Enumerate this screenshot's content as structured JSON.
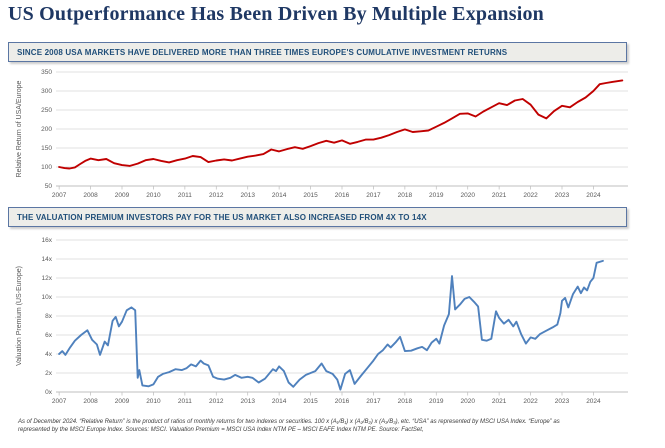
{
  "slide": {
    "title": "US Outperformance Has Been Driven By Multiple Expansion",
    "footnote_line1": "As of December 2024.  “Relative Return” is the product of ratios of monthly returns for two indexes or securities.  100 x (A₁/B₁) x (A₂/B₂) x (A₃/B₃), etc.   “USA” as represented by MSCI USA Index.  “Europe” as",
    "footnote_line2": "represented by the MSCI Europe Index. Sources: MSCI. Valuation Premium = MSCI USA Index NTM PE – MSCI EAFE Index NTM PE. Source: FactSet,"
  },
  "colors": {
    "title_text": "#1F3864",
    "banner_text": "#1F4E79",
    "banner_bg": "#EDEDE9",
    "banner_border": "#5B76A3",
    "gridline": "#D9D9D9",
    "axis": "#BFBFBF",
    "tick_label": "#595959"
  },
  "chart_data": [
    {
      "type": "line",
      "title": "SINCE 2008 USA MARKETS HAVE DELIVERED MORE THAN THREE TIMES EUROPE'S CUMULATIVE INVESTMENT RETURNS",
      "xlabel": "",
      "ylabel": "Relative Return of USA/Europe",
      "ylim": [
        50,
        350
      ],
      "grid": true,
      "legend": "none",
      "line_color": "#C00000",
      "y_ticks": [
        {
          "value": 50,
          "label": "50"
        },
        {
          "value": 100,
          "label": "100"
        },
        {
          "value": 150,
          "label": "150"
        },
        {
          "value": 200,
          "label": "200"
        },
        {
          "value": 250,
          "label": "250"
        },
        {
          "value": 300,
          "label": "300"
        },
        {
          "value": 350,
          "label": "350"
        }
      ],
      "x_ticks": [
        2007,
        2008,
        2009,
        2010,
        2011,
        2012,
        2013,
        2014,
        2015,
        2016,
        2017,
        2018,
        2019,
        2020,
        2021,
        2022,
        2023,
        2024
      ],
      "points": [
        [
          2007.0,
          100
        ],
        [
          2007.17,
          97
        ],
        [
          2007.33,
          96
        ],
        [
          2007.5,
          99
        ],
        [
          2007.67,
          108
        ],
        [
          2007.83,
          116
        ],
        [
          2008.0,
          122
        ],
        [
          2008.25,
          118
        ],
        [
          2008.5,
          121
        ],
        [
          2008.75,
          110
        ],
        [
          2009.0,
          105
        ],
        [
          2009.25,
          103
        ],
        [
          2009.5,
          109
        ],
        [
          2009.75,
          118
        ],
        [
          2010.0,
          121
        ],
        [
          2010.25,
          116
        ],
        [
          2010.5,
          112
        ],
        [
          2010.75,
          118
        ],
        [
          2011.0,
          122
        ],
        [
          2011.25,
          129
        ],
        [
          2011.5,
          126
        ],
        [
          2011.75,
          113
        ],
        [
          2012.0,
          117
        ],
        [
          2012.25,
          120
        ],
        [
          2012.5,
          117
        ],
        [
          2012.75,
          122
        ],
        [
          2013.0,
          127
        ],
        [
          2013.25,
          130
        ],
        [
          2013.5,
          134
        ],
        [
          2013.75,
          146
        ],
        [
          2014.0,
          141
        ],
        [
          2014.25,
          147
        ],
        [
          2014.5,
          152
        ],
        [
          2014.75,
          148
        ],
        [
          2015.0,
          155
        ],
        [
          2015.25,
          163
        ],
        [
          2015.5,
          169
        ],
        [
          2015.75,
          164
        ],
        [
          2016.0,
          170
        ],
        [
          2016.25,
          161
        ],
        [
          2016.5,
          166
        ],
        [
          2016.75,
          172
        ],
        [
          2017.0,
          172
        ],
        [
          2017.25,
          177
        ],
        [
          2017.5,
          184
        ],
        [
          2017.75,
          192
        ],
        [
          2018.0,
          199
        ],
        [
          2018.25,
          192
        ],
        [
          2018.5,
          194
        ],
        [
          2018.75,
          196
        ],
        [
          2019.0,
          206
        ],
        [
          2019.25,
          216
        ],
        [
          2019.5,
          228
        ],
        [
          2019.75,
          240
        ],
        [
          2020.0,
          241
        ],
        [
          2020.25,
          233
        ],
        [
          2020.5,
          246
        ],
        [
          2020.75,
          257
        ],
        [
          2021.0,
          268
        ],
        [
          2021.25,
          263
        ],
        [
          2021.5,
          275
        ],
        [
          2021.75,
          279
        ],
        [
          2022.0,
          264
        ],
        [
          2022.25,
          238
        ],
        [
          2022.5,
          228
        ],
        [
          2022.75,
          247
        ],
        [
          2023.0,
          261
        ],
        [
          2023.25,
          257
        ],
        [
          2023.5,
          271
        ],
        [
          2023.75,
          283
        ],
        [
          2024.0,
          300
        ],
        [
          2024.2,
          318
        ],
        [
          2024.4,
          321
        ],
        [
          2024.6,
          324
        ],
        [
          2024.92,
          328
        ]
      ]
    },
    {
      "type": "line",
      "title": "THE VALUATION PREMIUM INVESTORS PAY FOR THE US MARKET ALSO INCREASED FROM 4X TO 14X",
      "xlabel": "",
      "ylabel": "Valuation Premium (US-Europe)",
      "ylim": [
        0,
        16
      ],
      "grid": true,
      "legend": "none",
      "line_color": "#4F81BD",
      "y_ticks": [
        {
          "value": 0,
          "label": "0x"
        },
        {
          "value": 2,
          "label": "2x"
        },
        {
          "value": 4,
          "label": "4x"
        },
        {
          "value": 6,
          "label": "6x"
        },
        {
          "value": 8,
          "label": "8x"
        },
        {
          "value": 10,
          "label": "10x"
        },
        {
          "value": 12,
          "label": "12x"
        },
        {
          "value": 14,
          "label": "14x"
        },
        {
          "value": 16,
          "label": "16x"
        }
      ],
      "x_ticks": [
        2007,
        2008,
        2009,
        2010,
        2011,
        2012,
        2013,
        2014,
        2015,
        2016,
        2017,
        2018,
        2019,
        2020,
        2021,
        2022,
        2023,
        2024
      ],
      "points": [
        [
          2007.0,
          4.0
        ],
        [
          2007.1,
          4.3
        ],
        [
          2007.2,
          3.9
        ],
        [
          2007.35,
          4.7
        ],
        [
          2007.5,
          5.4
        ],
        [
          2007.7,
          6.0
        ],
        [
          2007.9,
          6.5
        ],
        [
          2008.05,
          5.5
        ],
        [
          2008.2,
          5.0
        ],
        [
          2008.3,
          3.9
        ],
        [
          2008.45,
          5.3
        ],
        [
          2008.55,
          4.9
        ],
        [
          2008.7,
          7.5
        ],
        [
          2008.8,
          7.9
        ],
        [
          2008.9,
          6.9
        ],
        [
          2009.0,
          7.4
        ],
        [
          2009.15,
          8.6
        ],
        [
          2009.3,
          8.9
        ],
        [
          2009.42,
          8.6
        ],
        [
          2009.5,
          1.5
        ],
        [
          2009.55,
          2.3
        ],
        [
          2009.65,
          0.7
        ],
        [
          2009.85,
          0.6
        ],
        [
          2010.0,
          0.8
        ],
        [
          2010.15,
          1.6
        ],
        [
          2010.3,
          1.9
        ],
        [
          2010.5,
          2.1
        ],
        [
          2010.7,
          2.4
        ],
        [
          2010.9,
          2.3
        ],
        [
          2011.05,
          2.5
        ],
        [
          2011.2,
          2.9
        ],
        [
          2011.35,
          2.7
        ],
        [
          2011.5,
          3.3
        ],
        [
          2011.6,
          3.0
        ],
        [
          2011.75,
          2.8
        ],
        [
          2011.9,
          1.6
        ],
        [
          2012.05,
          1.4
        ],
        [
          2012.25,
          1.3
        ],
        [
          2012.45,
          1.5
        ],
        [
          2012.6,
          1.8
        ],
        [
          2012.8,
          1.5
        ],
        [
          2013.0,
          1.6
        ],
        [
          2013.15,
          1.5
        ],
        [
          2013.35,
          1.0
        ],
        [
          2013.55,
          1.4
        ],
        [
          2013.8,
          2.4
        ],
        [
          2013.9,
          2.2
        ],
        [
          2014.0,
          2.7
        ],
        [
          2014.15,
          2.2
        ],
        [
          2014.3,
          1.0
        ],
        [
          2014.45,
          0.55
        ],
        [
          2014.65,
          1.3
        ],
        [
          2014.85,
          1.8
        ],
        [
          2015.0,
          2.0
        ],
        [
          2015.15,
          2.2
        ],
        [
          2015.35,
          3.0
        ],
        [
          2015.5,
          2.2
        ],
        [
          2015.7,
          1.9
        ],
        [
          2015.85,
          1.3
        ],
        [
          2015.95,
          0.25
        ],
        [
          2016.1,
          1.9
        ],
        [
          2016.25,
          2.3
        ],
        [
          2016.4,
          0.85
        ],
        [
          2016.6,
          1.7
        ],
        [
          2016.8,
          2.5
        ],
        [
          2017.0,
          3.3
        ],
        [
          2017.15,
          4.0
        ],
        [
          2017.3,
          4.4
        ],
        [
          2017.45,
          5.0
        ],
        [
          2017.55,
          4.7
        ],
        [
          2017.7,
          5.2
        ],
        [
          2017.85,
          5.8
        ],
        [
          2018.0,
          4.3
        ],
        [
          2018.2,
          4.35
        ],
        [
          2018.4,
          4.6
        ],
        [
          2018.55,
          4.75
        ],
        [
          2018.7,
          4.4
        ],
        [
          2018.85,
          5.2
        ],
        [
          2019.0,
          5.6
        ],
        [
          2019.1,
          5.1
        ],
        [
          2019.25,
          7.0
        ],
        [
          2019.4,
          8.2
        ],
        [
          2019.5,
          12.2
        ],
        [
          2019.6,
          8.7
        ],
        [
          2019.75,
          9.2
        ],
        [
          2019.9,
          9.8
        ],
        [
          2020.05,
          10.0
        ],
        [
          2020.2,
          9.5
        ],
        [
          2020.33,
          9.0
        ],
        [
          2020.45,
          5.5
        ],
        [
          2020.6,
          5.4
        ],
        [
          2020.75,
          5.6
        ],
        [
          2020.9,
          8.5
        ],
        [
          2021.0,
          7.8
        ],
        [
          2021.15,
          7.2
        ],
        [
          2021.3,
          7.6
        ],
        [
          2021.45,
          6.9
        ],
        [
          2021.55,
          7.4
        ],
        [
          2021.7,
          6.1
        ],
        [
          2021.85,
          5.1
        ],
        [
          2022.0,
          5.75
        ],
        [
          2022.15,
          5.6
        ],
        [
          2022.3,
          6.1
        ],
        [
          2022.5,
          6.45
        ],
        [
          2022.7,
          6.8
        ],
        [
          2022.85,
          7.1
        ],
        [
          2022.95,
          8.3
        ],
        [
          2023.0,
          9.6
        ],
        [
          2023.1,
          9.9
        ],
        [
          2023.2,
          8.9
        ],
        [
          2023.35,
          10.3
        ],
        [
          2023.5,
          11.1
        ],
        [
          2023.6,
          10.4
        ],
        [
          2023.7,
          11.0
        ],
        [
          2023.8,
          10.7
        ],
        [
          2023.9,
          11.6
        ],
        [
          2024.0,
          12.0
        ],
        [
          2024.1,
          13.6
        ],
        [
          2024.3,
          13.8
        ]
      ]
    }
  ]
}
